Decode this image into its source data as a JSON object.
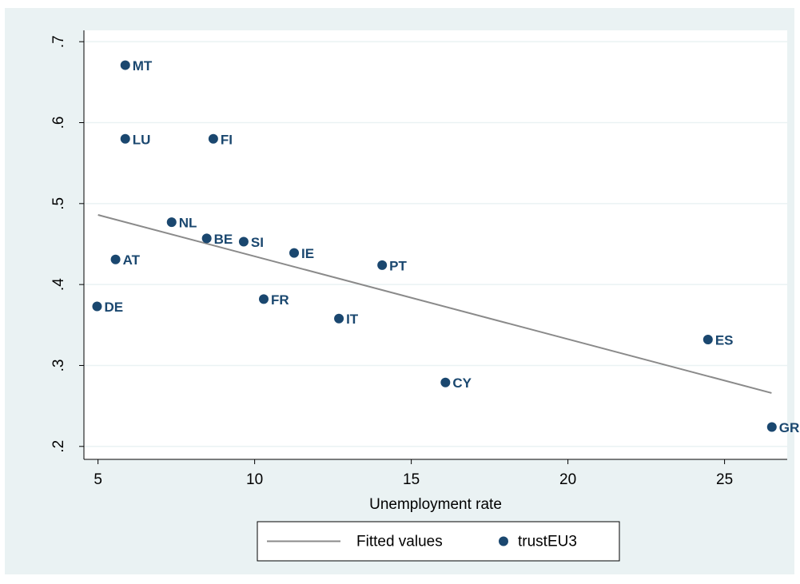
{
  "chart_data": {
    "type": "scatter",
    "xlabel": "Unemployment rate",
    "xlim": [
      4.55,
      27.0
    ],
    "xticks": [
      5,
      10,
      15,
      20,
      25
    ],
    "ylim": [
      0.184,
      0.714
    ],
    "yticks": [
      {
        "value": 0.2,
        "label": ".2"
      },
      {
        "value": 0.3,
        "label": ".3"
      },
      {
        "value": 0.4,
        "label": ".4"
      },
      {
        "value": 0.5,
        "label": ".5"
      },
      {
        "value": 0.6,
        "label": ".6"
      },
      {
        "value": 0.7,
        "label": ".7"
      }
    ],
    "grid": true,
    "legend": "bottom",
    "series": [
      {
        "name": "Fitted values",
        "type": "line",
        "color": "#8a8a8a",
        "x": [
          5,
          26.5
        ],
        "values": [
          0.486,
          0.266
        ]
      },
      {
        "name": "trustEU3",
        "type": "scatter",
        "color": "#1a476f",
        "x": [
          5.87,
          5.87,
          8.68,
          7.35,
          8.47,
          9.65,
          11.26,
          14.07,
          5.56,
          4.97,
          10.29,
          12.69,
          24.47,
          16.09,
          26.51
        ],
        "values": [
          0.671,
          0.58,
          0.58,
          0.477,
          0.457,
          0.453,
          0.439,
          0.424,
          0.431,
          0.373,
          0.382,
          0.358,
          0.332,
          0.279,
          0.224
        ],
        "labels": [
          "MT",
          "LU",
          "FI",
          "NL",
          "BE",
          "SI",
          "IE",
          "PT",
          "AT",
          "DE",
          "FR",
          "IT",
          "ES",
          "CY",
          "GR"
        ]
      }
    ]
  }
}
